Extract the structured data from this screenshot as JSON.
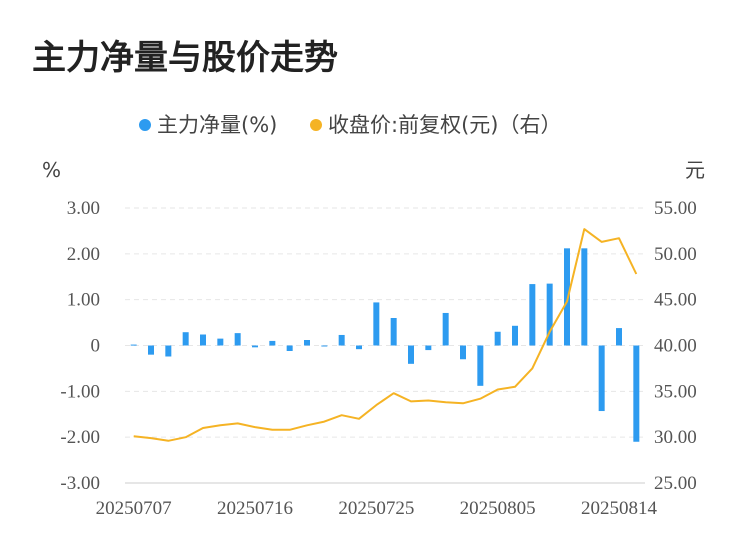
{
  "title": "主力净量与股价走势",
  "chart_data": {
    "type": "bar+line",
    "legend": [
      {
        "name": "主力净量(%)",
        "color": "#2d9bf0"
      },
      {
        "name": "收盘价:前复权(元)（右）",
        "color": "#f5b324"
      }
    ],
    "y_left_unit": "%",
    "y_right_unit": "元",
    "y_left_ticks": [
      "3.00",
      "2.00",
      "1.00",
      "0",
      "-1.00",
      "-2.00",
      "-3.00"
    ],
    "y_right_ticks": [
      "55.00",
      "50.00",
      "45.00",
      "40.00",
      "35.00",
      "30.00",
      "25.00"
    ],
    "y_left_range": [
      -3,
      3
    ],
    "y_right_range": [
      25,
      55
    ],
    "x_tick_labels": [
      "20250707",
      "20250716",
      "20250725",
      "20250805",
      "20250814"
    ],
    "x_tick_index": [
      0,
      7,
      14,
      21,
      28
    ],
    "series": [
      {
        "name": "主力净量(%)",
        "type": "bar",
        "values": [
          0.02,
          -0.2,
          -0.24,
          0.29,
          0.24,
          0.15,
          0.27,
          -0.04,
          0.1,
          -0.12,
          0.12,
          -0.02,
          0.23,
          -0.08,
          0.94,
          0.6,
          -0.4,
          -0.1,
          0.71,
          -0.3,
          -0.88,
          0.3,
          0.43,
          1.34,
          1.35,
          2.12,
          2.12,
          -1.43,
          0.38,
          -2.1
        ]
      },
      {
        "name": "收盘价:前复权(元)（右）",
        "type": "line",
        "values": [
          30.1,
          29.9,
          29.6,
          30.0,
          31.0,
          31.3,
          31.5,
          31.1,
          30.8,
          30.8,
          31.3,
          31.7,
          32.4,
          32.0,
          33.5,
          34.8,
          33.9,
          34.0,
          33.8,
          33.7,
          34.2,
          35.2,
          35.5,
          37.5,
          41.5,
          44.8,
          52.7,
          51.3,
          51.7,
          47.8
        ]
      }
    ],
    "grid": true
  }
}
